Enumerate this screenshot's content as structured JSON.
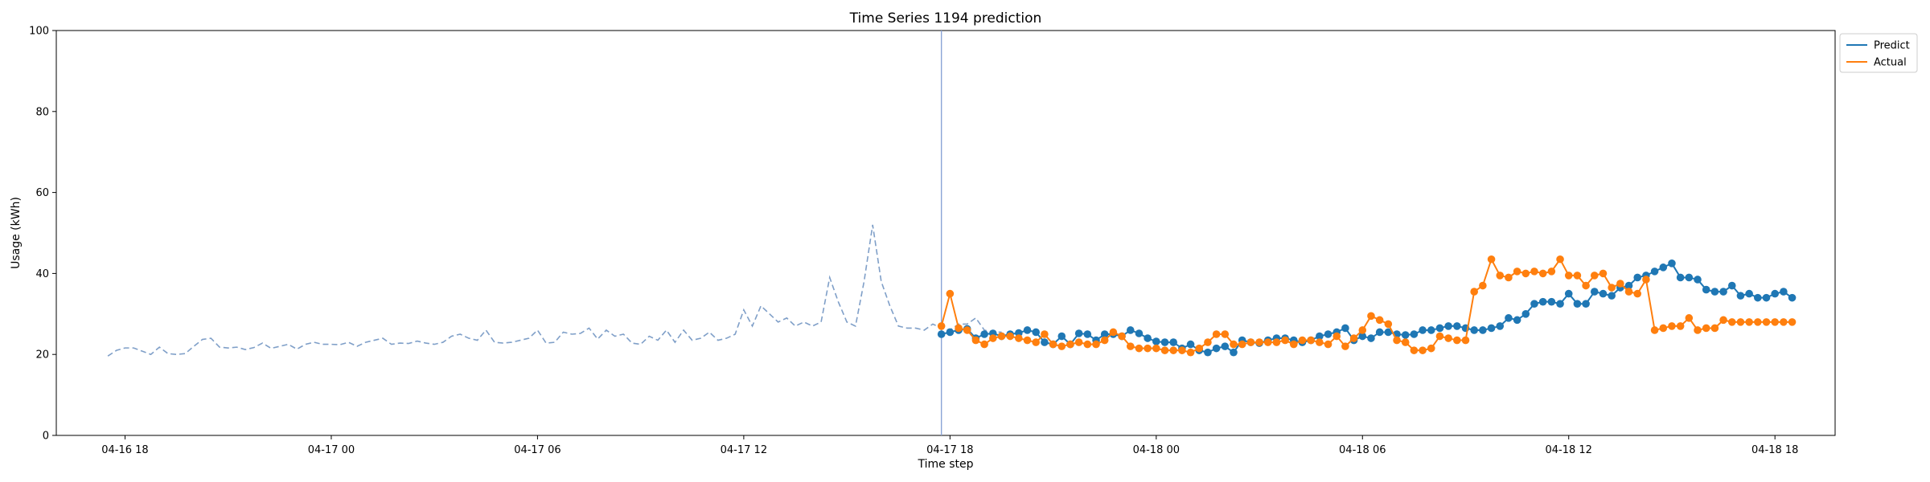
{
  "chart_data": {
    "type": "line",
    "title": "Time Series 1194 prediction",
    "xlabel": "Time step",
    "ylabel": "Usage (kWh)",
    "ylim": [
      0,
      100
    ],
    "yticks": [
      0,
      20,
      40,
      60,
      80,
      100
    ],
    "xlim": [
      "04-16 16:00",
      "04-18 19:45"
    ],
    "xticks": [
      "04-16 18",
      "04-17 00",
      "04-17 06",
      "04-17 12",
      "04-17 18",
      "04-18 00",
      "04-18 06",
      "04-18 12",
      "04-18 18"
    ],
    "xtick_times": [
      "04-16 18:00",
      "04-17 00:00",
      "04-17 06:00",
      "04-17 12:00",
      "04-17 18:00",
      "04-18 00:00",
      "04-18 06:00",
      "04-18 12:00",
      "04-18 18:00"
    ],
    "interval_minutes": 15,
    "split_time": "04-17 17:45",
    "grid": false,
    "legend_position": "upper right, outside",
    "colors": {
      "predict": "#1f77b4",
      "actual": "#ff7f0e",
      "history": "#7f9fc8",
      "split_line": "#8aa4d6"
    },
    "legend": [
      {
        "key": "predict",
        "label": "Predict"
      },
      {
        "key": "actual",
        "label": "Actual"
      }
    ],
    "history": {
      "start": "04-16 17:30",
      "values": [
        19.6,
        21.0,
        21.6,
        21.6,
        20.8,
        20.0,
        21.8,
        20.2,
        20.0,
        20.2,
        22.0,
        23.7,
        24.0,
        21.8,
        21.6,
        21.8,
        21.2,
        21.7,
        22.8,
        21.5,
        22.0,
        22.5,
        21.3,
        22.5,
        23.0,
        22.5,
        22.5,
        22.4,
        23.0,
        22.0,
        23.0,
        23.5,
        24.0,
        22.5,
        22.8,
        22.7,
        23.3,
        22.8,
        22.5,
        23.0,
        24.5,
        25.0,
        24.0,
        23.5,
        26.0,
        23.0,
        22.8,
        23.0,
        23.5,
        24.0,
        26.0,
        22.8,
        23.0,
        25.5,
        25.0,
        25.2,
        26.5,
        23.8,
        26.0,
        24.5,
        25.0,
        22.8,
        22.5,
        24.5,
        23.5,
        26.0,
        23.0,
        26.0,
        23.5,
        24.0,
        25.5,
        23.5,
        24.0,
        25.0,
        31.0,
        27.0,
        32.0,
        30.0,
        28.0,
        29.0,
        27.0,
        28.0,
        27.0,
        28.0,
        39.0,
        33.0,
        28.0,
        27.0,
        38.0,
        52.0,
        38.0,
        32.0,
        27.0,
        26.5,
        26.5,
        26.0,
        27.5,
        26.5,
        26.0,
        27.5,
        27.5,
        29.0,
        26.0,
        25.5,
        25.5
      ]
    },
    "forecast": {
      "start": "04-17 17:45",
      "predict": [
        25.0,
        25.5,
        26.0,
        26.3,
        24.0,
        25.0,
        25.2,
        24.5,
        25.0,
        25.3,
        26.0,
        25.5,
        23.0,
        22.5,
        24.5,
        22.5,
        25.2,
        25.0,
        23.5,
        25.0,
        25.0,
        24.5,
        26.0,
        25.2,
        24.0,
        23.2,
        23.0,
        23.0,
        21.5,
        22.5,
        21.0,
        20.5,
        21.5,
        22.0,
        20.5,
        23.5,
        23.0,
        22.8,
        23.5,
        24.0,
        24.0,
        23.5,
        23.0,
        23.5,
        24.5,
        25.0,
        25.5,
        26.5,
        23.5,
        24.5,
        24.0,
        25.5,
        25.5,
        25.0,
        24.8,
        25.0,
        26.0,
        26.0,
        26.5,
        27.0,
        27.0,
        26.5,
        26.0,
        26.0,
        26.5,
        27.0,
        29.0,
        28.5,
        30.0,
        32.5,
        33.0,
        33.0,
        32.5,
        35.0,
        32.5,
        32.5,
        35.5,
        35.0,
        34.5,
        36.5,
        37.0,
        39.0,
        39.5,
        40.5,
        41.5,
        42.5,
        39.0,
        39.0,
        38.5,
        36.0,
        35.5,
        35.5,
        37.0,
        34.5,
        35.0,
        34.0,
        34.0,
        35.0,
        35.5,
        34.0
      ],
      "actual": [
        27.0,
        35.0,
        26.5,
        26.0,
        23.5,
        22.5,
        24.0,
        24.5,
        24.5,
        24.0,
        23.5,
        23.0,
        25.0,
        22.5,
        22.0,
        22.5,
        23.0,
        22.5,
        22.5,
        23.5,
        25.5,
        24.5,
        22.0,
        21.5,
        21.5,
        21.5,
        21.0,
        21.0,
        21.0,
        20.5,
        21.5,
        23.0,
        25.0,
        25.0,
        22.5,
        22.5,
        23.0,
        23.0,
        23.0,
        23.0,
        23.5,
        22.5,
        23.5,
        23.5,
        23.0,
        22.5,
        24.5,
        22.0,
        24.0,
        26.0,
        29.5,
        28.5,
        27.5,
        23.5,
        23.0,
        21.0,
        21.0,
        21.5,
        24.5,
        24.0,
        23.5,
        23.5,
        35.5,
        37.0,
        43.5,
        39.5,
        39.0,
        40.5,
        40.0,
        40.5,
        40.0,
        40.5,
        43.5,
        39.5,
        39.5,
        37.0,
        39.5,
        40.0,
        36.5,
        37.5,
        35.5,
        35.0,
        38.5,
        26.0,
        26.5,
        27.0,
        27.0,
        29.0,
        26.0,
        26.5,
        26.5,
        28.5,
        28.0,
        28.0,
        28.0,
        28.0,
        28.0,
        28.0,
        28.0,
        28.0
      ]
    }
  }
}
